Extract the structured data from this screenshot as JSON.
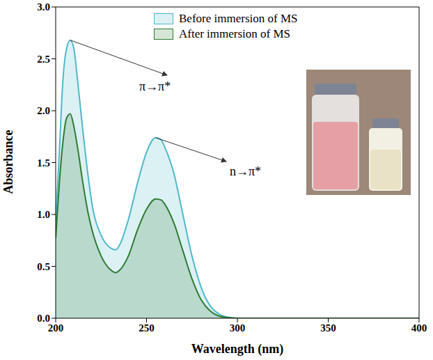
{
  "chart_data": {
    "type": "area",
    "x_label": "Wavelength (nm)",
    "y_label": "Absorbance",
    "x": [
      200,
      202,
      204,
      206,
      208,
      210,
      212,
      215,
      218,
      220,
      225,
      230,
      233,
      235,
      240,
      245,
      250,
      255,
      258,
      260,
      265,
      270,
      275,
      280,
      285,
      290,
      295,
      300,
      310,
      350,
      400
    ],
    "series": [
      {
        "name": "Before immersion of MS",
        "color": "#4fb8c8",
        "values": [
          0.92,
          1.6,
          2.3,
          2.6,
          2.68,
          2.6,
          2.3,
          1.8,
          1.35,
          1.1,
          0.8,
          0.68,
          0.66,
          0.7,
          0.95,
          1.3,
          1.6,
          1.74,
          1.72,
          1.65,
          1.4,
          1.0,
          0.6,
          0.3,
          0.12,
          0.04,
          0.01,
          0,
          0,
          0,
          0
        ]
      },
      {
        "name": "After immersion of MS",
        "color": "#2e7b32",
        "values": [
          0.77,
          1.3,
          1.7,
          1.93,
          1.97,
          1.85,
          1.65,
          1.3,
          1.0,
          0.85,
          0.6,
          0.47,
          0.44,
          0.46,
          0.6,
          0.85,
          1.05,
          1.15,
          1.14,
          1.1,
          0.92,
          0.65,
          0.38,
          0.18,
          0.07,
          0.02,
          0.005,
          0,
          0,
          0,
          0
        ]
      }
    ],
    "xlim": [
      200,
      400
    ],
    "xticks": [
      200,
      250,
      300,
      350,
      400
    ],
    "ylim": [
      0,
      3
    ],
    "yticks": [
      {
        "value": 0,
        "label": "0.0"
      },
      {
        "value": 0.5,
        "label": "0.5"
      },
      {
        "value": 1,
        "label": "1.0"
      },
      {
        "value": 1.5,
        "label": "1.5"
      },
      {
        "value": 2,
        "label": "2.0"
      },
      {
        "value": 2.5,
        "label": "2.5"
      },
      {
        "value": 3,
        "label": "3.0"
      }
    ],
    "grid": false,
    "legend": "top",
    "annotations": [
      {
        "text": "π→π*"
      },
      {
        "text": "n→π*"
      }
    ]
  }
}
